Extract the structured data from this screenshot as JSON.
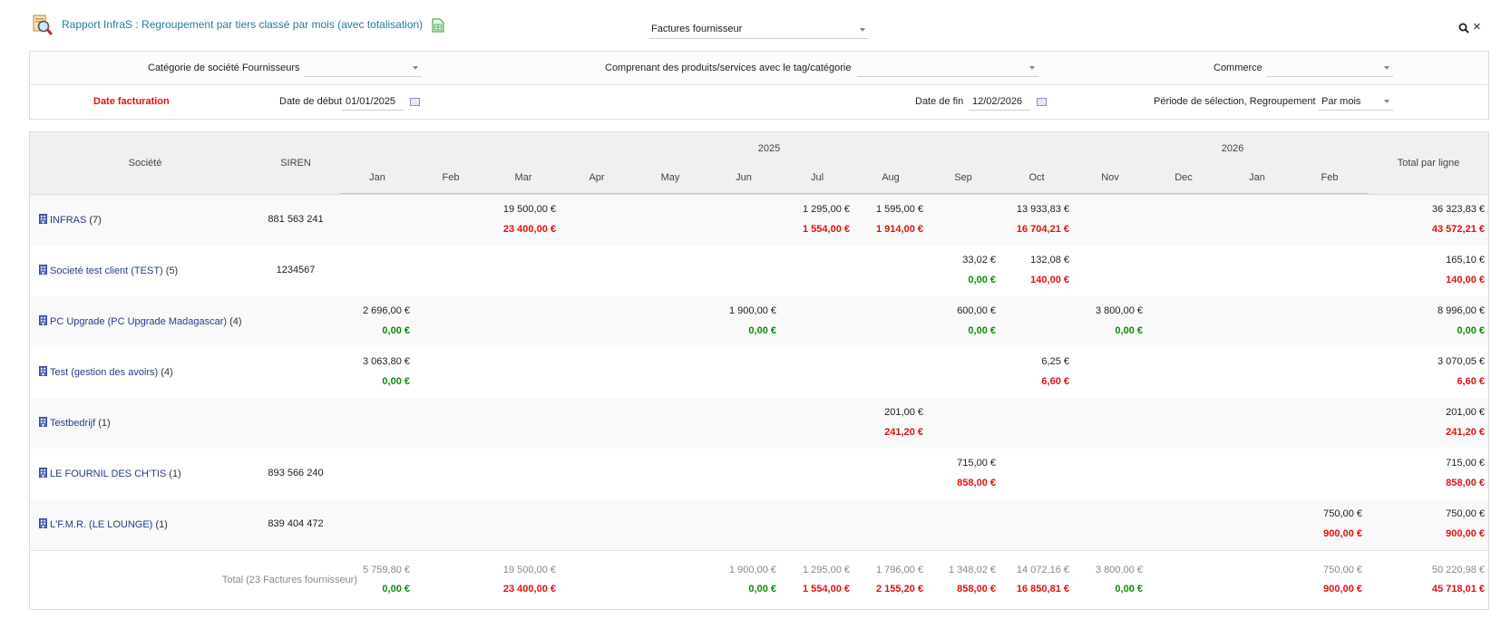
{
  "header": {
    "title": "Rapport InfraS : Regroupement par tiers classé par mois (avec totalisation)",
    "report_type": "Factures fournisseur",
    "icons": [
      "report-magnifier-icon",
      "spreadsheet-export-icon",
      "search-icon",
      "close-icon"
    ]
  },
  "filters": {
    "supplier_category_label": "Catégorie de société Fournisseurs",
    "supplier_category_value": "",
    "tag_label": "Comprenant des produits/services avec le tag/catégorie",
    "tag_value": "",
    "commerce_label": "Commerce",
    "commerce_value": "",
    "date_field": "Date facturation",
    "start_label": "Date de début",
    "start_value": "01/01/2025",
    "end_label": "Date de fin",
    "end_value": "12/02/2026",
    "period_label": "Période de sélection, Regroupement",
    "period_value": "Par mois"
  },
  "table": {
    "col_company": "Société",
    "col_siren": "SIREN",
    "col_total": "Total par ligne",
    "years": [
      "2025",
      "2026"
    ],
    "months": [
      "Jan",
      "Feb",
      "Mar",
      "Apr",
      "May",
      "Jun",
      "Jul",
      "Aug",
      "Sep",
      "Oct",
      "Nov",
      "Dec",
      "Jan",
      "Feb"
    ],
    "rows": [
      {
        "name": "INFRAS",
        "count": "(7)",
        "siren": "881 563 241",
        "total_ht": "36 323,83 €",
        "total_ttc": "43 572,21 €",
        "cells": [
          {
            "month": 2,
            "ht": "19 500,00 €",
            "ttc": "23 400,00 €",
            "color": "red"
          },
          {
            "month": 6,
            "ht": "1 295,00 €",
            "ttc": "1 554,00 €",
            "color": "red"
          },
          {
            "month": 7,
            "ht": "1 595,00 €",
            "ttc": "1 914,00 €",
            "color": "red"
          },
          {
            "month": 9,
            "ht": "13 933,83 €",
            "ttc": "16 704,21 €",
            "color": "red"
          }
        ]
      },
      {
        "name": "Societé test client (TEST)",
        "count": "(5)",
        "siren": "1234567",
        "total_ht": "165,10 €",
        "total_ttc": "140,00 €",
        "cells": [
          {
            "month": 8,
            "ht": "33,02 €",
            "ttc": "0,00 €",
            "color": "green"
          },
          {
            "month": 9,
            "ht": "132,08 €",
            "ttc": "140,00 €",
            "color": "red"
          }
        ]
      },
      {
        "name": "PC Upgrade (PC Upgrade Madagascar)",
        "count": "(4)",
        "siren": "",
        "total_ht": "8 996,00 €",
        "total_ttc": "0,00 €",
        "cells": [
          {
            "month": 0,
            "ht": "2 696,00 €",
            "ttc": "0,00 €",
            "color": "green"
          },
          {
            "month": 5,
            "ht": "1 900,00 €",
            "ttc": "0,00 €",
            "color": "green"
          },
          {
            "month": 8,
            "ht": "600,00 €",
            "ttc": "0,00 €",
            "color": "green"
          },
          {
            "month": 10,
            "ht": "3 800,00 €",
            "ttc": "0,00 €",
            "color": "green"
          }
        ]
      },
      {
        "name": "Test (gestion des avoirs)",
        "count": "(4)",
        "siren": "",
        "total_ht": "3 070,05 €",
        "total_ttc": "6,60 €",
        "cells": [
          {
            "month": 0,
            "ht": "3 063,80 €",
            "ttc": "0,00 €",
            "color": "green"
          },
          {
            "month": 9,
            "ht": "6,25 €",
            "ttc": "6,60 €",
            "color": "red"
          }
        ]
      },
      {
        "name": "Testbedrijf",
        "count": "(1)",
        "siren": "",
        "total_ht": "201,00 €",
        "total_ttc": "241,20 €",
        "cells": [
          {
            "month": 7,
            "ht": "201,00 €",
            "ttc": "241,20 €",
            "color": "red"
          }
        ]
      },
      {
        "name": "LE FOURNIL DES CH'TIS",
        "count": "(1)",
        "siren": "893 566 240",
        "total_ht": "715,00 €",
        "total_ttc": "858,00 €",
        "cells": [
          {
            "month": 8,
            "ht": "715,00 €",
            "ttc": "858,00 €",
            "color": "red"
          }
        ]
      },
      {
        "name": "L'F.M.R. (LE LOUNGE)",
        "count": "(1)",
        "siren": "839 404 472",
        "total_ht": "750,00 €",
        "total_ttc": "900,00 €",
        "cells": [
          {
            "month": 13,
            "ht": "750,00 €",
            "ttc": "900,00 €",
            "color": "red"
          }
        ]
      }
    ],
    "total": {
      "label": "Total (23 Factures fournisseur)",
      "total_ht": "50 220,98 €",
      "total_ttc": "45 718,01 €",
      "cells": [
        {
          "month": 0,
          "ht": "5 759,80 €",
          "ttc": "0,00 €",
          "color": "green"
        },
        {
          "month": 2,
          "ht": "19 500,00 €",
          "ttc": "23 400,00 €",
          "color": "red"
        },
        {
          "month": 5,
          "ht": "1 900,00 €",
          "ttc": "0,00 €",
          "color": "green"
        },
        {
          "month": 6,
          "ht": "1 295,00 €",
          "ttc": "1 554,00 €",
          "color": "red"
        },
        {
          "month": 7,
          "ht": "1 796,00 €",
          "ttc": "2 155,20 €",
          "color": "red"
        },
        {
          "month": 8,
          "ht": "1 348,02 €",
          "ttc": "858,00 €",
          "color": "red"
        },
        {
          "month": 9,
          "ht": "14 072,16 €",
          "ttc": "16 850,81 €",
          "color": "red"
        },
        {
          "month": 10,
          "ht": "3 800,00 €",
          "ttc": "0,00 €",
          "color": "green"
        },
        {
          "month": 13,
          "ht": "750,00 €",
          "ttc": "900,00 €",
          "color": "red"
        }
      ]
    }
  }
}
